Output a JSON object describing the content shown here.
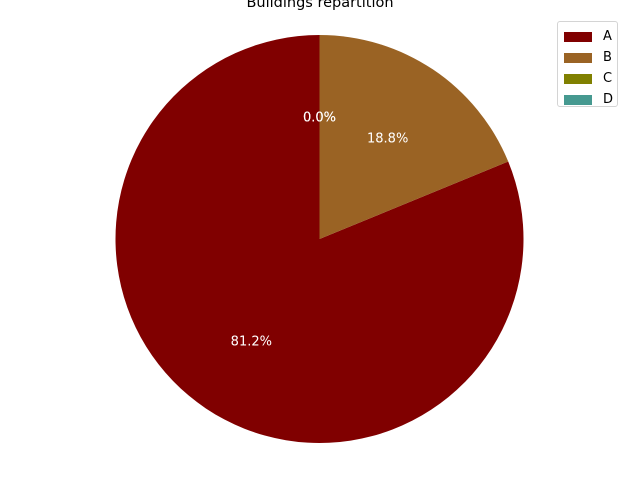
{
  "chart_data": {
    "type": "pie",
    "title": "Buildings repartition",
    "categories": [
      "A",
      "B",
      "C",
      "D"
    ],
    "values": [
      81.2,
      18.8,
      0.0,
      0.0
    ],
    "labels": [
      "81.2%",
      "18.8%",
      "0.0%",
      "0.0%"
    ],
    "colors": [
      "#800000",
      "#9a6324",
      "#808000",
      "#469990"
    ],
    "start_angle_deg": 90,
    "direction": "counterclockwise",
    "legend_placement": "top-right"
  }
}
